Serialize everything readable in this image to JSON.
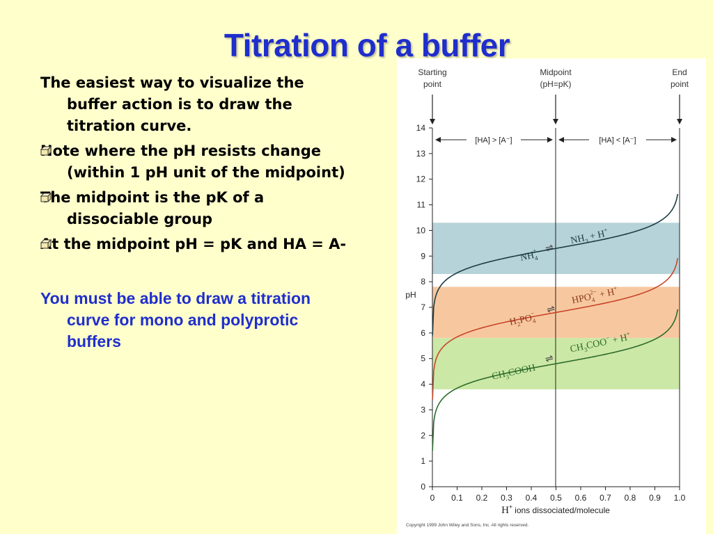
{
  "slide": {
    "title": "Titration of a buffer",
    "intro": "The easiest way to visualize the buffer action is to draw the titration curve.",
    "bullets": [
      "Note where the pH resists change (within 1 pH unit of the midpoint)",
      "The midpoint is the pK of a dissociable group",
      "At the midpoint pH = pK and HA = A-"
    ],
    "note": "You must be able to draw a titration curve for mono and polyprotic buffers"
  },
  "bullet_icon": "open-box-icon",
  "chart_data": {
    "type": "line",
    "xlabel_prefix": "H",
    "xlabel_suffix": "ions dissociated/molecule",
    "ylabel": "pH",
    "xlim": [
      0,
      1.0
    ],
    "ylim": [
      0,
      14
    ],
    "xticks": [
      "0",
      "0.1",
      "0.2",
      "0.3",
      "0.4",
      "0.5",
      "0.6",
      "0.7",
      "0.8",
      "0.9",
      "1.0"
    ],
    "yticks": [
      "0",
      "1",
      "2",
      "3",
      "4",
      "5",
      "6",
      "7",
      "8",
      "9",
      "10",
      "11",
      "12",
      "13",
      "14"
    ],
    "grid": false,
    "markers": {
      "start": [
        "Starting",
        "point"
      ],
      "mid": [
        "Midpoint",
        "(pH=pK)"
      ],
      "end": [
        "End",
        "point"
      ]
    },
    "region_labels": {
      "left": "[HA] > [A⁻]",
      "right": "[HA] < [A⁻]"
    },
    "buffer_bands": [
      {
        "low": 8.3,
        "high": 10.3,
        "color": "#b5d3d8"
      },
      {
        "low": 5.8,
        "high": 7.8,
        "color": "#f7c8a0"
      },
      {
        "low": 3.8,
        "high": 5.8,
        "color": "#cce8a6"
      }
    ],
    "series": [
      {
        "pK": 9.3,
        "color": "#1d3c45"
      },
      {
        "pK": 6.8,
        "color": "#c8452a"
      },
      {
        "pK": 4.8,
        "color": "#2c6b2a"
      }
    ],
    "equations": [
      {
        "acid": "NH4+",
        "base": "NH3 + H+"
      },
      {
        "acid": "H2PO4-",
        "base": "HPO4 2- + H+"
      },
      {
        "acid": "CH3COOH",
        "base": "CH3COO- + H+"
      }
    ],
    "copyright": "Copyright 1999 John Wiley and Sons, Inc. All rights reserved."
  }
}
